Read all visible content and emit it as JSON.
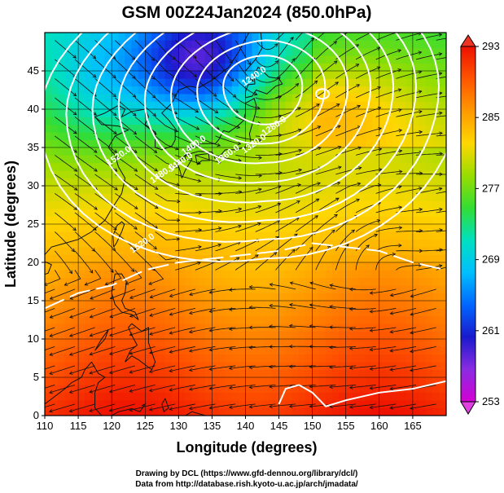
{
  "title": "GSM 00Z24Jan2024 (850.0hPa)",
  "credits": [
    "Drawing by DCL (https://www.gfd-dennou.org/library/dcl/)",
    "Data from http://database.rish.kyoto-u.ac.jp/arch/jmadata/"
  ],
  "chart_data": {
    "type": "heatmap",
    "title": "GSM 00Z24Jan2024 (850.0hPa)",
    "xlabel": "Longitude (degrees)",
    "ylabel": "Latitude  (degrees)",
    "xlim": [
      110,
      170
    ],
    "ylim": [
      0,
      50
    ],
    "xticks": [
      110,
      115,
      120,
      125,
      130,
      135,
      140,
      145,
      150,
      155,
      160,
      165
    ],
    "yticks": [
      0,
      5,
      10,
      15,
      20,
      25,
      30,
      35,
      40,
      45
    ],
    "grid": true,
    "colorbar": {
      "range": [
        253,
        293
      ],
      "ticks": [
        253,
        261,
        269,
        277,
        285,
        293
      ],
      "colors": [
        "#d400d4",
        "#8a2be2",
        "#1a1acd",
        "#0066ff",
        "#00bfff",
        "#00e0c0",
        "#33dd33",
        "#99dd00",
        "#ffd700",
        "#ff9900",
        "#ff5500",
        "#ee1100"
      ]
    },
    "contour_labels": [
      {
        "text": "1240.0",
        "lon": 141.5,
        "lat": 44.0
      },
      {
        "text": "1280.0",
        "lon": 144.5,
        "lat": 37.5
      },
      {
        "text": "1320.0",
        "lon": 141.5,
        "lat": 35.2
      },
      {
        "text": "1360.0",
        "lon": 137.5,
        "lat": 33.8
      },
      {
        "text": "1400.0",
        "lon": 132.5,
        "lat": 35.0
      },
      {
        "text": "1440.0",
        "lon": 130.5,
        "lat": 32.8
      },
      {
        "text": "1480.0",
        "lon": 127.8,
        "lat": 31.3
      },
      {
        "text": "1520.0",
        "lon": 121.3,
        "lat": 33.6
      },
      {
        "text": "1520.0",
        "lon": 124.8,
        "lat": 22.2
      }
    ]
  }
}
